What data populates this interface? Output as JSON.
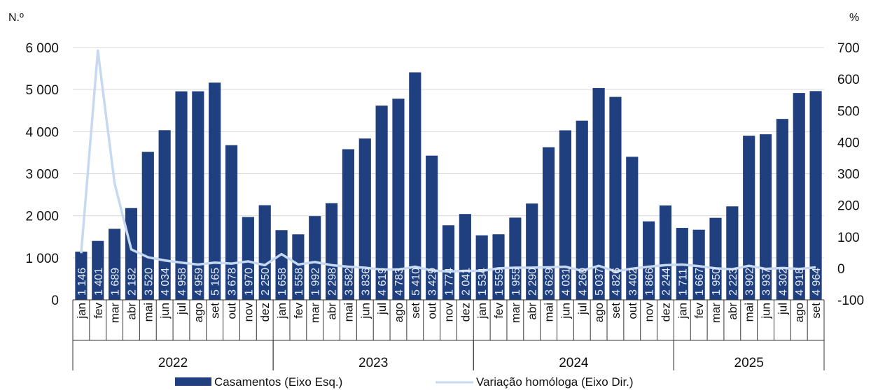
{
  "chart_data": {
    "type": "bar",
    "left_unit": "N.º",
    "right_unit": "%",
    "categories": [
      "jan",
      "fev",
      "mar",
      "abr",
      "mai",
      "jun",
      "jul",
      "ago",
      "set",
      "out",
      "nov",
      "dez",
      "jan",
      "fev",
      "mar",
      "abr",
      "mai",
      "jun",
      "jul",
      "ago",
      "set",
      "out",
      "nov",
      "dez",
      "jan",
      "fev",
      "mar",
      "abr",
      "mai",
      "jun",
      "jul",
      "ago",
      "set",
      "out",
      "nov",
      "dez",
      "jan",
      "fev",
      "mar",
      "abr",
      "mai",
      "jun",
      "jul",
      "ago",
      "set"
    ],
    "groups": [
      {
        "label": "2022",
        "count": 12
      },
      {
        "label": "2023",
        "count": 12
      },
      {
        "label": "2024",
        "count": 12
      },
      {
        "label": "2025",
        "count": 9
      }
    ],
    "series": [
      {
        "name": "Casamentos (Eixo Esq.)",
        "type": "bar",
        "axis": "left",
        "color": "#1f3f7f",
        "values": [
          1146,
          1401,
          1689,
          2182,
          3520,
          4034,
          4958,
          4959,
          5165,
          3678,
          1970,
          2250,
          1658,
          1558,
          1992,
          2298,
          3582,
          3836,
          4619,
          4783,
          5410,
          3429,
          1774,
          2041,
          1534,
          1559,
          1955,
          2290,
          3629,
          4031,
          4260,
          5037,
          4826,
          3402,
          1866,
          2244,
          1711,
          1667,
          1950,
          2223,
          3902,
          3937,
          4302,
          4918,
          4964
        ],
        "labels": [
          "1 146",
          "1 401",
          "1 689",
          "2 182",
          "3 520",
          "4 034",
          "4 958",
          "4 959",
          "5 165",
          "3 678",
          "1 970",
          "2 250",
          "1 658",
          "1 558",
          "1 992",
          "2 298",
          "3 582",
          "3 836",
          "4 619",
          "4 783",
          "5 410",
          "3 429",
          "1 774",
          "2 041",
          "1 534",
          "1 559",
          "1 955",
          "2 290",
          "3 629",
          "4 031",
          "4 260",
          "5 037",
          "4 826",
          "3 402",
          "1 866",
          "2 244",
          "1 711",
          "1 667",
          "1 950",
          "2 223",
          "3 902",
          "3 937",
          "4 302",
          "4 918",
          "4 964"
        ]
      },
      {
        "name": "Variação homóloga (Eixo Dir.)",
        "type": "line",
        "axis": "right",
        "color": "#c6d9f1",
        "values": [
          48,
          690,
          270,
          60,
          35,
          25,
          18,
          12,
          18,
          15,
          22,
          10,
          45,
          12,
          20,
          10,
          5,
          2,
          -4,
          -4,
          5,
          -7,
          -10,
          -8,
          -8,
          0,
          2,
          2,
          3,
          5,
          -8,
          8,
          -10,
          -1,
          5,
          10,
          12,
          7,
          0,
          -3,
          8,
          -2,
          1,
          -2,
          3
        ]
      }
    ],
    "y_left": {
      "min": 0,
      "max": 6000,
      "step": 1000,
      "tick_labels": [
        "0",
        "1 000",
        "2 000",
        "3 000",
        "4 000",
        "5 000",
        "6 000"
      ]
    },
    "y_right": {
      "min": -100,
      "max": 700,
      "step": 100,
      "tick_labels": [
        "-100",
        "0",
        "100",
        "200",
        "300",
        "400",
        "500",
        "600",
        "700"
      ]
    },
    "grid": true,
    "legend_position": "bottom"
  }
}
